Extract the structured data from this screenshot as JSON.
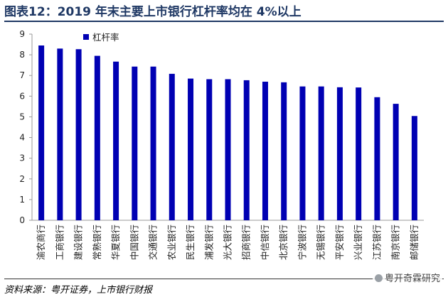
{
  "header": {
    "title": "图表12：2019 年末主要上市银行杠杆率均在 4%以上"
  },
  "footer": {
    "source": "资料来源：粤开证券，上市银行财报",
    "watermark": "粤开奇霖研究"
  },
  "colors": {
    "bar": "#0000b3",
    "title": "#1f3864"
  },
  "chart_data": {
    "type": "bar",
    "title": "",
    "xlabel": "",
    "ylabel": "",
    "ylim": [
      0,
      9
    ],
    "yticks": [
      0,
      1,
      2,
      3,
      4,
      5,
      6,
      7,
      8,
      9
    ],
    "legend": [
      "杠杆率"
    ],
    "legend_position": "top-left",
    "categories": [
      "渝农商行",
      "工商银行",
      "建设银行",
      "常熟银行",
      "华夏银行",
      "中国银行",
      "交通银行",
      "农业银行",
      "民生银行",
      "浦发银行",
      "光大银行",
      "招商银行",
      "中信银行",
      "北京银行",
      "宁波银行",
      "无锡银行",
      "平安银行",
      "兴业银行",
      "江苏银行",
      "南京银行",
      "邮储银行"
    ],
    "series": [
      {
        "name": "杠杆率",
        "values": [
          8.45,
          8.3,
          8.27,
          7.95,
          7.67,
          7.43,
          7.43,
          7.08,
          6.85,
          6.82,
          6.82,
          6.77,
          6.7,
          6.67,
          6.47,
          6.47,
          6.43,
          6.42,
          5.95,
          5.63,
          5.04
        ]
      }
    ]
  }
}
